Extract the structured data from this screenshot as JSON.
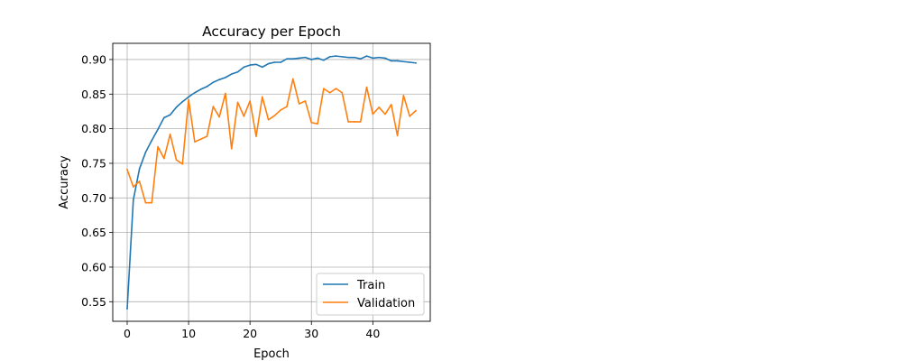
{
  "chart_data": {
    "type": "line",
    "title": "Accuracy per Epoch",
    "xlabel": "Epoch",
    "ylabel": "Accuracy",
    "xlim": [
      -2.35,
      49.35
    ],
    "ylim": [
      0.5217,
      0.9234
    ],
    "x_ticks": [
      0,
      10,
      20,
      30,
      40
    ],
    "y_ticks": [
      0.55,
      0.6,
      0.65,
      0.7,
      0.75,
      0.8,
      0.85,
      0.9
    ],
    "y_tick_labels": [
      "0.55",
      "0.60",
      "0.65",
      "0.70",
      "0.75",
      "0.80",
      "0.85",
      "0.90"
    ],
    "grid": true,
    "legend_position": "lower right",
    "x": [
      0,
      1,
      2,
      3,
      4,
      5,
      6,
      7,
      8,
      9,
      10,
      11,
      12,
      13,
      14,
      15,
      16,
      17,
      18,
      19,
      20,
      21,
      22,
      23,
      24,
      25,
      26,
      27,
      28,
      29,
      30,
      31,
      32,
      33,
      34,
      35,
      36,
      37,
      38,
      39,
      40,
      41,
      42,
      43,
      44,
      45,
      46,
      47
    ],
    "series": [
      {
        "name": "Train",
        "color": "#1f77b4",
        "values": [
          0.54,
          0.697,
          0.742,
          0.766,
          0.783,
          0.799,
          0.816,
          0.82,
          0.831,
          0.839,
          0.846,
          0.852,
          0.857,
          0.861,
          0.867,
          0.871,
          0.874,
          0.879,
          0.882,
          0.889,
          0.892,
          0.893,
          0.889,
          0.894,
          0.896,
          0.896,
          0.901,
          0.901,
          0.902,
          0.903,
          0.9,
          0.902,
          0.899,
          0.904,
          0.905,
          0.904,
          0.903,
          0.903,
          0.901,
          0.905,
          0.902,
          0.903,
          0.902,
          0.898,
          0.898,
          0.897,
          0.896,
          0.895
        ]
      },
      {
        "name": "Validation",
        "color": "#ff7f0e",
        "values": [
          0.741,
          0.716,
          0.724,
          0.693,
          0.693,
          0.774,
          0.757,
          0.792,
          0.755,
          0.749,
          0.842,
          0.781,
          0.785,
          0.789,
          0.832,
          0.817,
          0.851,
          0.771,
          0.838,
          0.818,
          0.84,
          0.789,
          0.846,
          0.813,
          0.819,
          0.827,
          0.832,
          0.872,
          0.836,
          0.84,
          0.809,
          0.807,
          0.858,
          0.852,
          0.858,
          0.852,
          0.81,
          0.81,
          0.81,
          0.86,
          0.821,
          0.831,
          0.821,
          0.835,
          0.79,
          0.848,
          0.818,
          0.826
        ]
      }
    ]
  }
}
